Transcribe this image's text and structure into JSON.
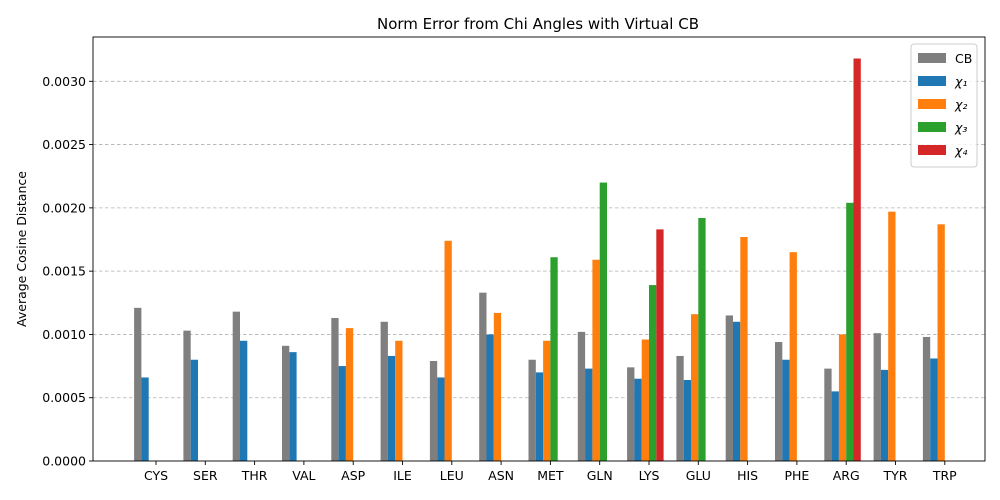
{
  "chart_data": {
    "type": "bar",
    "title": "Norm Error from Chi Angles with Virtual CB",
    "xlabel": "",
    "ylabel": "Average Cosine Distance",
    "ylim": [
      0,
      0.00335
    ],
    "yticks": [
      "0.0000",
      "0.0005",
      "0.0010",
      "0.0015",
      "0.0020",
      "0.0025",
      "0.0030"
    ],
    "ytick_values": [
      0,
      0.0005,
      0.001,
      0.0015,
      0.002,
      0.0025,
      0.003
    ],
    "grid": "y-dashed",
    "legend_position": "top-right",
    "categories": [
      "CYS",
      "SER",
      "THR",
      "VAL",
      "ASP",
      "ILE",
      "LEU",
      "ASN",
      "MET",
      "GLN",
      "LYS",
      "GLU",
      "HIS",
      "PHE",
      "ARG",
      "TYR",
      "TRP"
    ],
    "series": [
      {
        "name": "CB",
        "color": "#7f7f7f",
        "values": [
          0.00121,
          0.00103,
          0.00118,
          0.00091,
          0.00113,
          0.0011,
          0.00079,
          0.00133,
          0.0008,
          0.00102,
          0.00074,
          0.00083,
          0.00115,
          0.00094,
          0.00073,
          0.00101,
          0.00098
        ]
      },
      {
        "name": "χ₁",
        "color": "#1f77b4",
        "values": [
          0.00066,
          0.0008,
          0.00095,
          0.00086,
          0.00075,
          0.00083,
          0.00066,
          0.001,
          0.0007,
          0.00073,
          0.00065,
          0.00064,
          0.0011,
          0.0008,
          0.00055,
          0.00072,
          0.00081
        ]
      },
      {
        "name": "χ₂",
        "color": "#ff7f0e",
        "values": [
          null,
          null,
          null,
          null,
          0.00105,
          0.00095,
          0.00174,
          0.00117,
          0.00095,
          0.00159,
          0.00096,
          0.00116,
          0.00177,
          0.00165,
          0.001,
          0.00197,
          0.00187
        ]
      },
      {
        "name": "χ₃",
        "color": "#2ca02c",
        "values": [
          null,
          null,
          null,
          null,
          null,
          null,
          null,
          null,
          0.00161,
          0.0022,
          0.00139,
          0.00192,
          null,
          null,
          0.00204,
          null,
          null
        ]
      },
      {
        "name": "χ₄",
        "color": "#d62728",
        "values": [
          null,
          null,
          null,
          null,
          null,
          null,
          null,
          null,
          null,
          null,
          0.00183,
          null,
          null,
          null,
          0.00318,
          null,
          null
        ]
      }
    ]
  }
}
